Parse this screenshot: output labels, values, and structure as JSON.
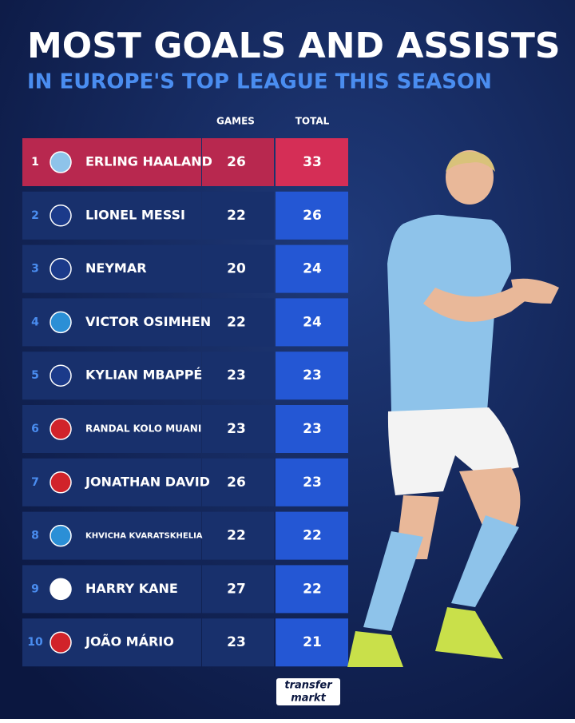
{
  "header": {
    "title": "MOST GOALS AND ASSISTS",
    "subtitle": "IN EUROPE'S TOP LEAGUE THIS SEASON"
  },
  "table": {
    "columns": [
      "GAMES",
      "TOTAL"
    ],
    "rows": [
      {
        "rank": 1,
        "name": "ERLING HAALAND",
        "games": 26,
        "total": 33
      },
      {
        "rank": 2,
        "name": "LIONEL MESSI",
        "games": 22,
        "total": 26
      },
      {
        "rank": 3,
        "name": "NEYMAR",
        "games": 20,
        "total": 24
      },
      {
        "rank": 4,
        "name": "VICTOR OSIMHEN",
        "games": 22,
        "total": 24
      },
      {
        "rank": 5,
        "name": "KYLIAN MBAPPÉ",
        "games": 23,
        "total": 23
      },
      {
        "rank": 6,
        "name": "RANDAL KOLO MUANI",
        "games": 23,
        "total": 23
      },
      {
        "rank": 7,
        "name": "JONATHAN DAVID",
        "games": 26,
        "total": 23
      },
      {
        "rank": 8,
        "name": "KHVICHA KVARATSKHELIA",
        "games": 22,
        "total": 22
      },
      {
        "rank": 9,
        "name": "HARRY KANE",
        "games": 27,
        "total": 22
      },
      {
        "rank": 10,
        "name": "JOÃO MÁRIO",
        "games": 23,
        "total": 21
      }
    ]
  },
  "footer": {
    "logo_top": "transfer",
    "logo_bottom": "markt"
  }
}
